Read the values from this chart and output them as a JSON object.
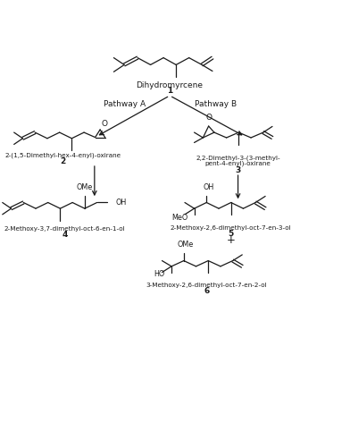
{
  "figure_width": 3.92,
  "figure_height": 4.82,
  "dpi": 100,
  "bg_color": "#ffffff",
  "line_color": "#1a1a1a",
  "line_width": 0.9,
  "labels": {
    "compound1_name": "Dihydromyrcene",
    "compound1_num": "1",
    "pathway_a": "Pathway A",
    "pathway_b": "Pathway B",
    "compound2_name": "2-(1,5-Dimethyl-hex-4-enyl)-oxirane",
    "compound2_num": "2",
    "compound3_line1": "2,2-Dimethyl-3-(3-methyl-",
    "compound3_line2": "pent-4-enyl)-oxirane",
    "compound3_num": "3",
    "compound4_name": "2-Methoxy-3,7-dimethyl-oct-6-en-1-ol",
    "compound4_num": "4",
    "compound5_name": "2-Methoxy-2,6-dimethyl-oct-7-en-3-ol",
    "compound5_num": "5",
    "plus": "+",
    "compound6_name": "3-Methoxy-2,6-dimethyl-oct-7-en-2-ol",
    "compound6_num": "6"
  },
  "font_sizes": {
    "name": 5.2,
    "num": 6.5,
    "pathway": 6.5,
    "group": 5.0
  }
}
